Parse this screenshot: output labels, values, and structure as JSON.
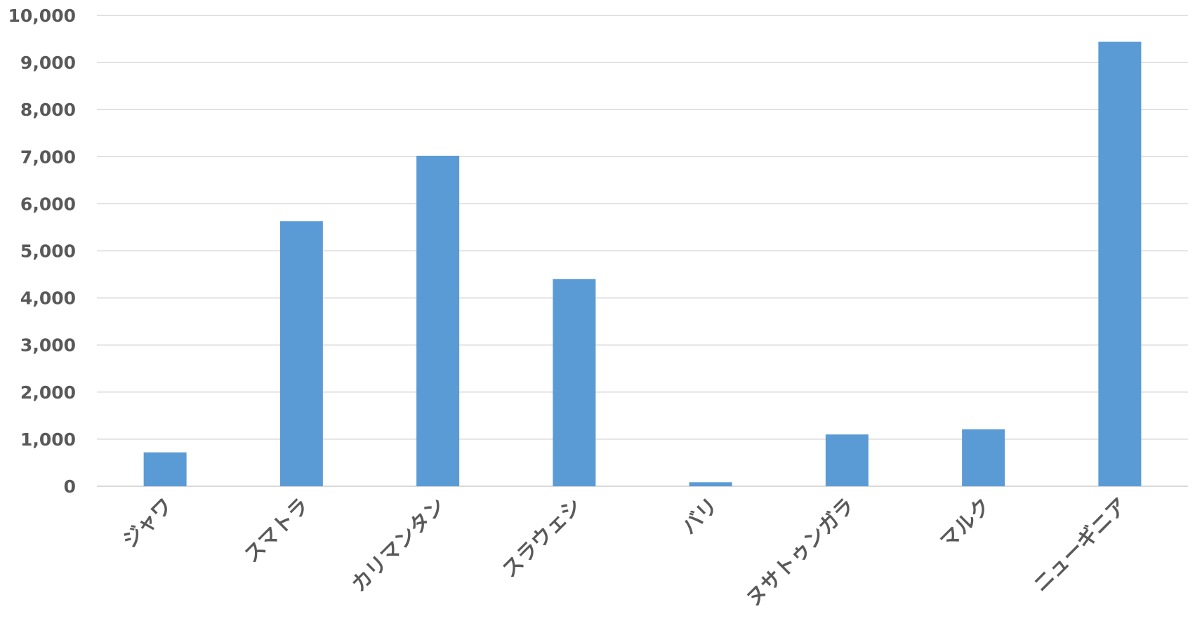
{
  "chart_data": {
    "type": "bar",
    "categories": [
      "ジャワ",
      "スマトラ",
      "カリマンタン",
      "スラウェシ",
      "バリ",
      "ヌサトゥンガラ",
      "マルク",
      "ニューギニア"
    ],
    "values": [
      720,
      5630,
      7020,
      4400,
      85,
      1100,
      1210,
      9440
    ],
    "yticks": [
      "0",
      "1,000",
      "2,000",
      "3,000",
      "4,000",
      "5,000",
      "6,000",
      "7,000",
      "8,000",
      "9,000",
      "10,000"
    ],
    "ylim": [
      0,
      10000
    ],
    "grid": true,
    "colors": {
      "bar": "#5b9bd5",
      "grid": "#d9d9d9",
      "text": "#595959"
    }
  }
}
